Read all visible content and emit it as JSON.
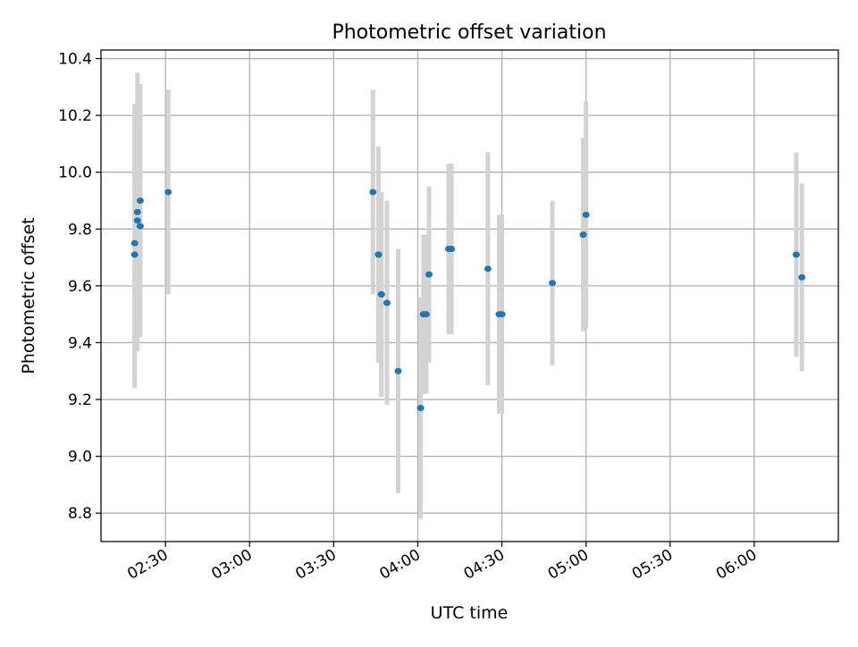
{
  "chart_data": {
    "type": "scatter",
    "title": "Photometric offset variation",
    "xlabel": "UTC time",
    "ylabel": "Photometric offset",
    "x_unit": "UTC clock time (HH:MM)",
    "xlim": [
      "02:07",
      "06:30"
    ],
    "ylim": [
      8.7,
      10.43
    ],
    "x_ticks": [
      "02:30",
      "03:00",
      "03:30",
      "04:00",
      "04:30",
      "05:00",
      "05:30",
      "06:00"
    ],
    "y_ticks": [
      8.8,
      9.0,
      9.2,
      9.4,
      9.6,
      9.8,
      10.0,
      10.2,
      10.4
    ],
    "grid": true,
    "legend": "none",
    "colors": {
      "marker": "#1f77b4",
      "errorbar": "#d3d3d3",
      "grid": "#b0b0b0"
    },
    "series": [
      {
        "points": [
          {
            "x": "02:19",
            "y": 9.75,
            "err": 0.49
          },
          {
            "x": "02:19",
            "y": 9.71,
            "err": 0.47
          },
          {
            "x": "02:20",
            "y": 9.86,
            "err": 0.49
          },
          {
            "x": "02:20",
            "y": 9.83,
            "err": 0.4
          },
          {
            "x": "02:21",
            "y": 9.81,
            "err": 0.39
          },
          {
            "x": "02:21",
            "y": 9.9,
            "err": 0.41
          },
          {
            "x": "02:31",
            "y": 9.93,
            "err": 0.36
          },
          {
            "x": "03:44",
            "y": 9.93,
            "err": 0.36
          },
          {
            "x": "03:46",
            "y": 9.71,
            "err": 0.38
          },
          {
            "x": "03:46",
            "y": 9.71,
            "err": 0.38
          },
          {
            "x": "03:47",
            "y": 9.57,
            "err": 0.36
          },
          {
            "x": "03:47",
            "y": 9.57,
            "err": 0.36
          },
          {
            "x": "03:49",
            "y": 9.54,
            "err": 0.36
          },
          {
            "x": "03:53",
            "y": 9.3,
            "err": 0.43
          },
          {
            "x": "04:01",
            "y": 9.17,
            "err": 0.39
          },
          {
            "x": "04:02",
            "y": 9.5,
            "err": 0.28
          },
          {
            "x": "04:03",
            "y": 9.5,
            "err": 0.28
          },
          {
            "x": "04:04",
            "y": 9.64,
            "err": 0.31
          },
          {
            "x": "04:11",
            "y": 9.73,
            "err": 0.3
          },
          {
            "x": "04:12",
            "y": 9.73,
            "err": 0.3
          },
          {
            "x": "04:25",
            "y": 9.66,
            "err": 0.41
          },
          {
            "x": "04:29",
            "y": 9.5,
            "err": 0.35
          },
          {
            "x": "04:30",
            "y": 9.5,
            "err": 0.35
          },
          {
            "x": "04:48",
            "y": 9.61,
            "err": 0.29
          },
          {
            "x": "04:59",
            "y": 9.78,
            "err": 0.34
          },
          {
            "x": "05:00",
            "y": 9.85,
            "err": 0.4
          },
          {
            "x": "06:15",
            "y": 9.71,
            "err": 0.36
          },
          {
            "x": "06:17",
            "y": 9.63,
            "err": 0.33
          }
        ]
      }
    ]
  }
}
